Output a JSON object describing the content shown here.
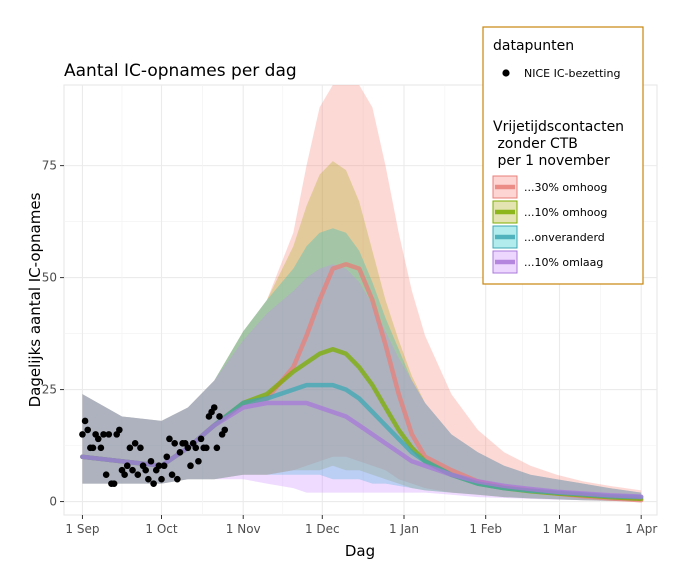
{
  "chart_data": {
    "type": "area",
    "title": "Aantal IC-opnames per dag",
    "xlabel": "Dag",
    "ylabel": "Dagelijks aantal IC-opnames",
    "x_ticks": [
      "1 Sep",
      "1 Oct",
      "1 Nov",
      "1 Dec",
      "1 Jan",
      "1 Feb",
      "1 Mar",
      "1 Apr"
    ],
    "x_tick_days": [
      0,
      30,
      61,
      91,
      122,
      153,
      181,
      212
    ],
    "y_ticks": [
      0,
      25,
      50,
      75
    ],
    "xlim_days": [
      -7,
      218
    ],
    "ylim": [
      -3,
      93
    ],
    "grid": true,
    "legend": {
      "position": "top-right",
      "points_title": "datapunten",
      "points_label": "NICE IC-bezetting",
      "series_title": [
        "Vrijetijdscontacten",
        " zonder CTB",
        " per 1 november"
      ]
    },
    "observed": {
      "name": "NICE IC-bezetting",
      "color": "#000000",
      "day": [
        0,
        1,
        2,
        3,
        4,
        5,
        6,
        7,
        8,
        9,
        10,
        11,
        12,
        13,
        14,
        15,
        16,
        17,
        18,
        19,
        20,
        21,
        22,
        23,
        24,
        25,
        26,
        27,
        28,
        29,
        30,
        31,
        32,
        33,
        34,
        35,
        36,
        37,
        38,
        39,
        40,
        41,
        42,
        43,
        44,
        45,
        46,
        47,
        48,
        49,
        50,
        51,
        52,
        53,
        54
      ],
      "value": [
        15,
        18,
        16,
        12,
        12,
        15,
        14,
        12,
        15,
        6,
        15,
        4,
        4,
        15,
        16,
        7,
        6,
        8,
        12,
        7,
        13,
        6,
        12,
        8,
        7,
        5,
        9,
        4,
        7,
        8,
        5,
        8,
        10,
        14,
        6,
        13,
        5,
        11,
        13,
        13,
        12,
        8,
        13,
        12,
        9,
        14,
        12,
        12,
        19,
        20,
        21,
        12,
        19,
        15,
        16
      ]
    },
    "series": [
      {
        "name": "...30% omhoog",
        "color": "#e87f78",
        "band_color": "#f8766d",
        "day": [
          0,
          15,
          30,
          40,
          50,
          61,
          70,
          80,
          85,
          90,
          95,
          100,
          105,
          110,
          115,
          120,
          125,
          130,
          140,
          150,
          160,
          170,
          180,
          190,
          200,
          212
        ],
        "median": [
          10,
          9,
          8,
          12,
          17,
          22,
          23,
          30,
          37,
          45,
          52,
          53,
          52,
          45,
          35,
          24,
          15,
          10,
          7,
          4.5,
          3.2,
          2.5,
          1.8,
          1.2,
          0.7,
          0.3
        ],
        "lower": [
          4,
          4,
          4,
          5,
          5,
          6,
          6,
          7,
          8,
          9,
          10,
          10,
          9,
          8,
          7,
          5,
          4,
          3,
          2,
          1.5,
          1,
          0.7,
          0.5,
          0.3,
          0.1,
          0
        ],
        "upper": [
          24,
          19,
          18,
          21,
          27,
          38,
          45,
          60,
          75,
          88,
          93,
          93,
          93,
          88,
          75,
          60,
          47,
          37,
          24,
          16,
          11,
          8,
          6,
          4.5,
          3.5,
          2.5
        ]
      },
      {
        "name": "...10% omhoog",
        "color": "#7cae00",
        "band_color": "#a3a500",
        "day": [
          0,
          15,
          30,
          40,
          50,
          61,
          70,
          80,
          85,
          90,
          95,
          100,
          105,
          110,
          115,
          120,
          125,
          130,
          140,
          150,
          160,
          170,
          180,
          190,
          200,
          212
        ],
        "median": [
          10,
          9,
          8,
          12,
          17,
          22,
          24,
          29,
          31,
          33,
          34,
          33,
          30,
          26,
          21,
          16,
          12,
          9,
          6,
          4,
          3,
          2.3,
          1.8,
          1.4,
          1,
          0.6
        ],
        "lower": [
          4,
          4,
          4,
          5,
          5,
          6,
          6,
          7,
          7,
          7,
          8,
          7,
          7,
          6,
          5,
          4,
          3,
          2.5,
          2,
          1.5,
          1,
          0.7,
          0.5,
          0.3,
          0.2,
          0.1
        ],
        "upper": [
          24,
          19,
          18,
          21,
          27,
          38,
          45,
          57,
          66,
          73,
          76,
          74,
          67,
          56,
          45,
          36,
          28,
          22,
          15,
          11,
          8,
          6,
          5,
          4,
          3,
          2
        ]
      },
      {
        "name": "...onveranderd",
        "color": "#3ea8b4",
        "band_color": "#00bfc4",
        "day": [
          0,
          15,
          30,
          40,
          50,
          61,
          70,
          80,
          85,
          90,
          95,
          100,
          105,
          110,
          115,
          120,
          125,
          130,
          140,
          150,
          160,
          170,
          180,
          190,
          200,
          212
        ],
        "median": [
          10,
          9,
          8,
          12,
          17,
          22,
          23,
          25,
          26,
          26,
          26,
          25,
          23,
          20,
          17,
          14,
          11,
          9,
          6,
          4,
          3,
          2.4,
          2,
          1.6,
          1.2,
          1
        ],
        "lower": [
          4,
          4,
          4,
          5,
          5,
          6,
          6,
          6,
          6,
          6,
          5,
          5,
          5,
          4,
          4,
          3.5,
          3,
          2.5,
          2,
          1.5,
          1,
          0.7,
          0.5,
          0.3,
          0.2,
          0.1
        ],
        "upper": [
          24,
          19,
          18,
          21,
          27,
          38,
          45,
          52,
          57,
          60,
          61,
          60,
          56,
          49,
          41,
          34,
          27,
          22,
          15,
          11,
          8,
          6,
          5,
          4,
          3,
          2
        ]
      },
      {
        "name": "...10% omlaag",
        "color": "#a978d8",
        "band_color": "#c77cff",
        "day": [
          0,
          15,
          30,
          40,
          50,
          61,
          70,
          80,
          85,
          90,
          95,
          100,
          105,
          110,
          115,
          120,
          125,
          130,
          140,
          150,
          160,
          170,
          180,
          190,
          200,
          212
        ],
        "median": [
          10,
          9,
          8,
          12,
          17,
          21,
          22,
          22,
          22,
          21,
          20,
          19,
          17,
          15,
          13,
          11,
          9,
          8,
          6,
          4.5,
          3.5,
          2.8,
          2.2,
          1.8,
          1.4,
          1.1
        ],
        "lower": [
          4,
          4,
          4,
          5,
          5,
          5,
          4,
          3,
          2,
          2,
          2,
          2,
          2,
          2,
          2,
          2,
          2,
          2,
          1.5,
          1,
          0.8,
          0.6,
          0.4,
          0.3,
          0.2,
          0.1
        ],
        "upper": [
          24,
          19,
          18,
          21,
          27,
          36,
          42,
          47,
          50,
          52,
          53,
          52,
          49,
          44,
          38,
          32,
          27,
          22,
          15,
          11,
          8,
          6,
          5,
          4,
          3,
          2
        ]
      }
    ]
  }
}
